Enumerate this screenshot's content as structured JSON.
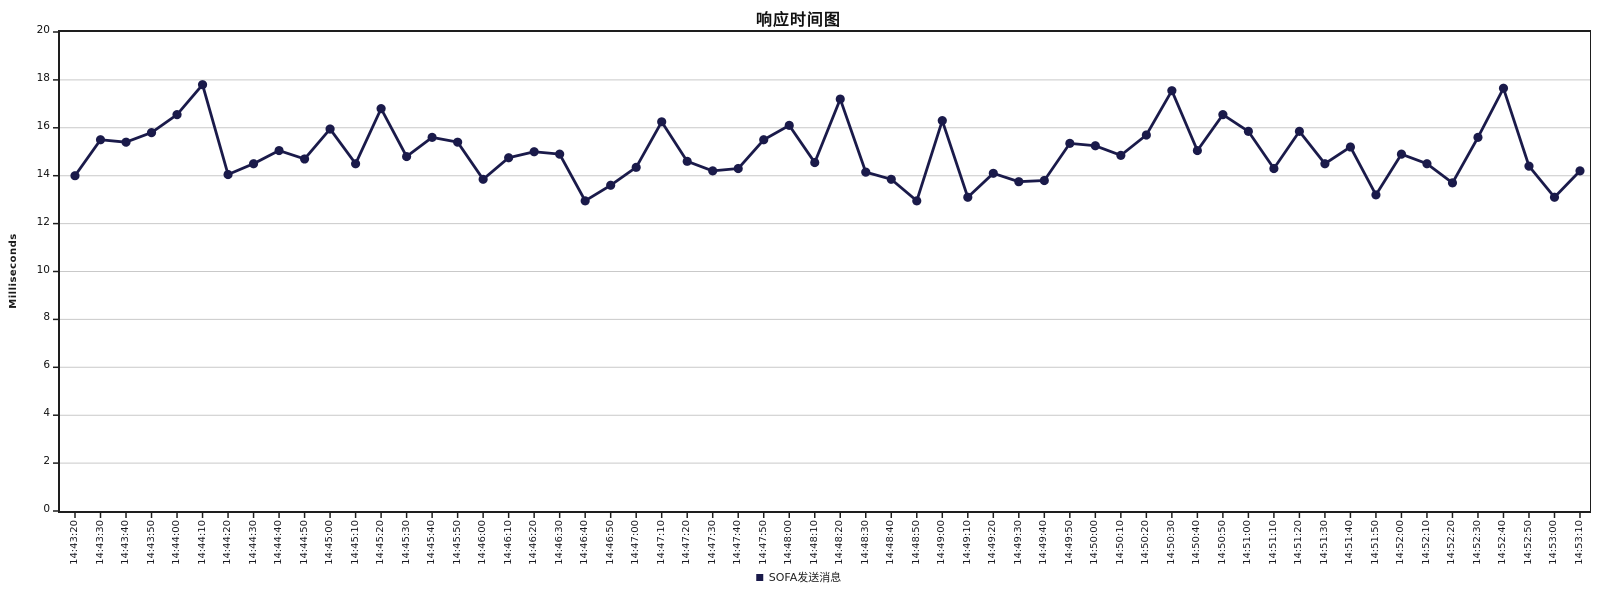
{
  "chart_data": {
    "type": "line",
    "title": "响应时间图",
    "xlabel": "",
    "ylabel": "Milliseconds",
    "ylim": [
      0,
      20
    ],
    "yticks": [
      0,
      2,
      4,
      6,
      8,
      10,
      12,
      14,
      16,
      18,
      20
    ],
    "grid": true,
    "legend_position": "bottom",
    "categories": [
      "14:43:20",
      "14:43:30",
      "14:43:40",
      "14:43:50",
      "14:44:00",
      "14:44:10",
      "14:44:20",
      "14:44:30",
      "14:44:40",
      "14:44:50",
      "14:45:00",
      "14:45:10",
      "14:45:20",
      "14:45:30",
      "14:45:40",
      "14:45:50",
      "14:46:00",
      "14:46:10",
      "14:46:20",
      "14:46:30",
      "14:46:40",
      "14:46:50",
      "14:47:00",
      "14:47:10",
      "14:47:20",
      "14:47:30",
      "14:47:40",
      "14:47:50",
      "14:48:00",
      "14:48:10",
      "14:48:20",
      "14:48:30",
      "14:48:40",
      "14:48:50",
      "14:49:00",
      "14:49:10",
      "14:49:20",
      "14:49:30",
      "14:49:40",
      "14:49:50",
      "14:50:00",
      "14:50:10",
      "14:50:20",
      "14:50:30",
      "14:50:40",
      "14:50:50",
      "14:51:00",
      "14:51:10",
      "14:51:20",
      "14:51:30",
      "14:51:40",
      "14:51:50",
      "14:52:00",
      "14:52:10",
      "14:52:20",
      "14:52:30",
      "14:52:40",
      "14:52:50",
      "14:53:00",
      "14:53:10"
    ],
    "series": [
      {
        "name": "SOFA发送消息",
        "marker": "circle",
        "color": "#1a1a4a",
        "values": [
          14.0,
          15.5,
          15.4,
          15.8,
          16.55,
          17.8,
          14.05,
          14.5,
          15.05,
          14.7,
          15.95,
          14.5,
          16.8,
          14.8,
          15.6,
          15.4,
          13.85,
          14.75,
          15.0,
          14.9,
          12.95,
          13.6,
          14.35,
          16.25,
          14.6,
          14.2,
          14.3,
          15.5,
          16.1,
          14.55,
          17.2,
          14.15,
          13.85,
          12.95,
          16.3,
          13.1,
          14.1,
          13.75,
          13.8,
          15.35,
          15.25,
          14.85,
          15.7,
          17.55,
          15.05,
          16.55,
          15.85,
          14.3,
          15.85,
          14.5,
          15.2,
          13.2,
          14.9,
          14.5,
          13.7,
          15.6,
          17.65,
          14.4,
          13.1,
          14.2
        ]
      }
    ],
    "colors": {
      "series": "#1a1a4a",
      "gridline": "#c9c9c9",
      "axis_text": "#111111",
      "plot_border": "#1e1e1e",
      "background": "#ffffff"
    }
  }
}
